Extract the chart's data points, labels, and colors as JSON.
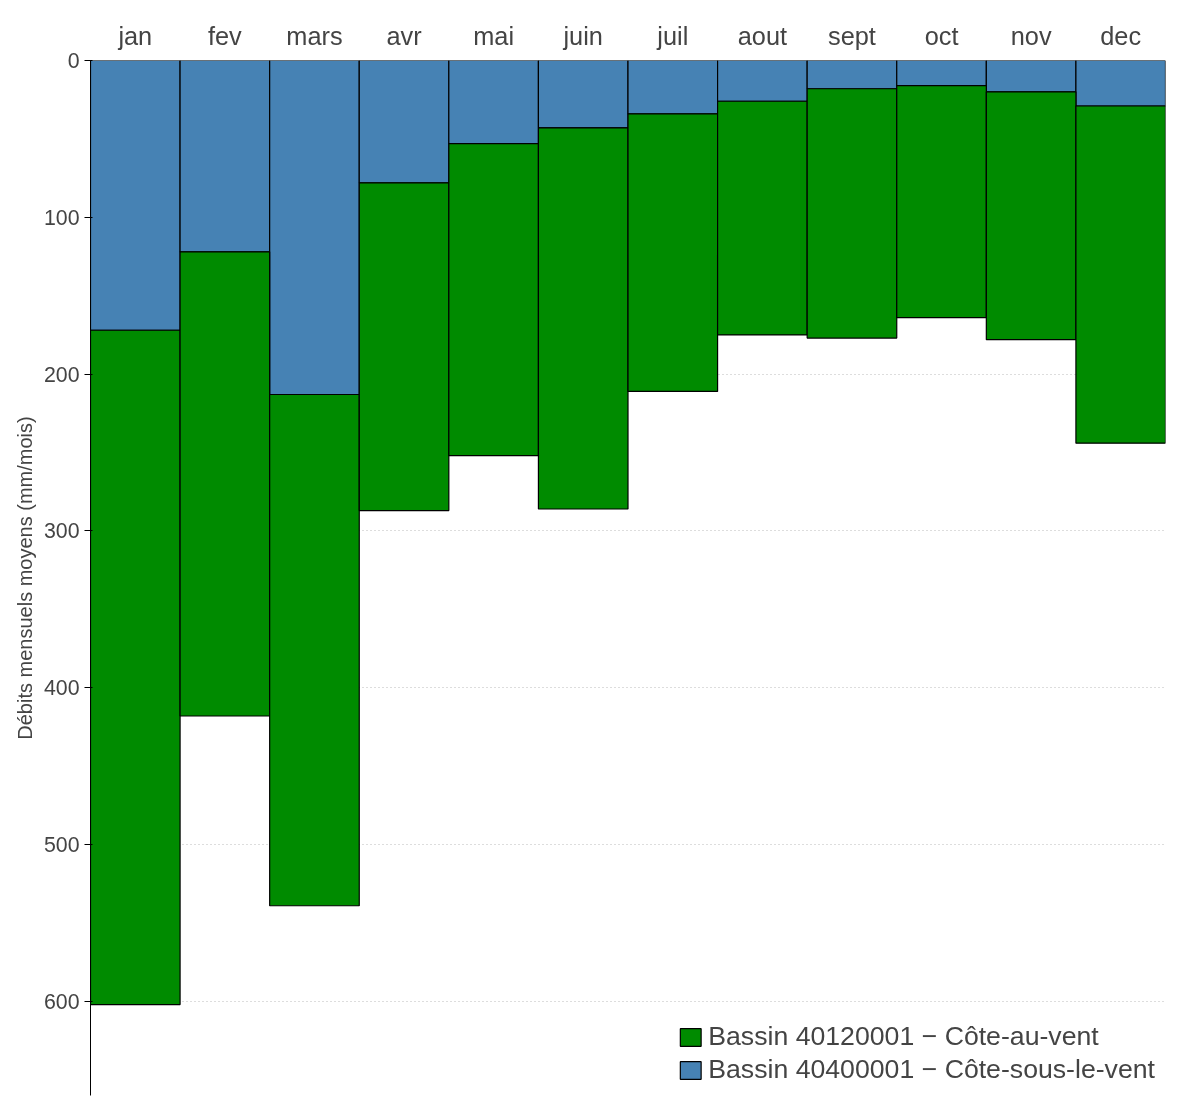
{
  "chart_data": {
    "type": "bar",
    "stacked": true,
    "ylabel": "Débits mensuels moyens (mm/mois)",
    "categories": [
      "jan",
      "fev",
      "mars",
      "avr",
      "mai",
      "juin",
      "juil",
      "aout",
      "sept",
      "oct",
      "nov",
      "dec"
    ],
    "series": [
      {
        "name": "Bassin 40400001 − Côte-sous-le-vent",
        "color": "#4682b4",
        "values": [
          172,
          122,
          213,
          78,
          53,
          43,
          34,
          26,
          18,
          16,
          20,
          29
        ]
      },
      {
        "name": "Bassin 40120001 − Côte-au-vent",
        "color": "#008b00",
        "values": [
          430,
          296,
          326,
          209,
          199,
          243,
          177,
          149,
          159,
          148,
          158,
          215
        ]
      }
    ],
    "ylim": [
      660,
      0
    ],
    "yticks": [
      0,
      100,
      200,
      300,
      400,
      500,
      600
    ],
    "grid": "y",
    "legend": "bottom right"
  }
}
